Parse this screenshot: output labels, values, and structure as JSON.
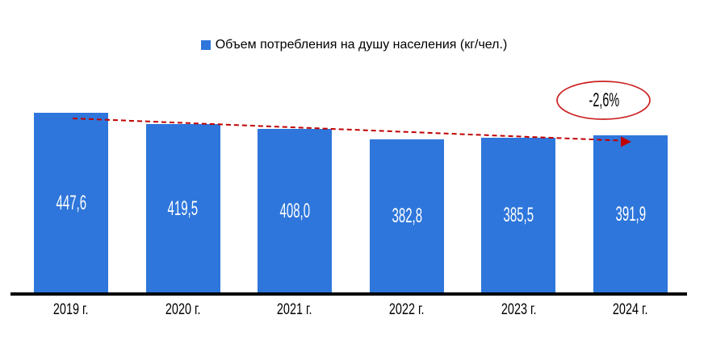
{
  "chart_data": {
    "type": "bar",
    "legend": "Объем потребления на душу населения (кг/чел.)",
    "legend_position": "top-center",
    "grid": false,
    "categories": [
      "2019 г.",
      "2020 г.",
      "2021 г.",
      "2022 г.",
      "2023 г.",
      "2024 г."
    ],
    "values": [
      447.6,
      419.5,
      408.0,
      382.8,
      385.5,
      391.9
    ],
    "value_labels": [
      "447,6",
      "419,5",
      "408,0",
      "382,8",
      "385,5",
      "391,9"
    ],
    "ylim": [
      0,
      460
    ],
    "annotation": {
      "label": "-2,6%"
    },
    "colors": {
      "bar": "#2E76DB",
      "bar_label_text": "#FFFFFF",
      "trend_line": "#C00000",
      "annotation_ellipse": "#CC2222",
      "axis": "#000000",
      "text": "#000000"
    }
  }
}
